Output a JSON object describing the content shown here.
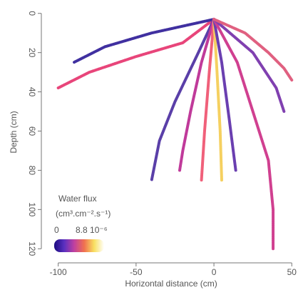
{
  "chart_data": {
    "type": "line",
    "xlabel": "Horizontal distance (cm)",
    "ylabel": "Depth (cm)",
    "xlim": [
      -109,
      54
    ],
    "ylim": [
      -5,
      125
    ],
    "y_reversed": true,
    "xticks": [
      -100,
      -50,
      0,
      50
    ],
    "yticks": [
      0,
      20,
      40,
      60,
      80,
      100,
      120
    ],
    "legend_title": "Water flux",
    "legend_units": "(cm³.cm⁻².s⁻¹)",
    "colorbar_min_label": "0",
    "colorbar_max_label": "8.8 10⁻⁶",
    "colorbar_colors": [
      "#1a0a80",
      "#5a30c0",
      "#c040a0",
      "#f07050",
      "#f8e060",
      "#ffffff"
    ],
    "roots": [
      {
        "color": "#e8457a",
        "x": [
          0,
          -20,
          -50,
          -80,
          -100
        ],
        "y": [
          3,
          15,
          22,
          30,
          38
        ]
      },
      {
        "color": "#4030a0",
        "x": [
          0,
          -40,
          -70,
          -90
        ],
        "y": [
          3,
          10,
          17,
          25
        ]
      },
      {
        "color": "#5a3fa8",
        "x": [
          0,
          -10,
          -25,
          -35,
          -40
        ],
        "y": [
          3,
          20,
          45,
          65,
          85
        ]
      },
      {
        "color": "#c03a9a",
        "x": [
          0,
          -8,
          -15,
          -20,
          -22
        ],
        "y": [
          3,
          25,
          50,
          70,
          80
        ]
      },
      {
        "color": "#f0607a",
        "x": [
          0,
          -3,
          -6,
          -8
        ],
        "y": [
          3,
          30,
          60,
          85
        ]
      },
      {
        "color": "#f5d060",
        "x": [
          0,
          2,
          4,
          5
        ],
        "y": [
          3,
          30,
          60,
          85
        ]
      },
      {
        "color": "#6a3fb0",
        "x": [
          0,
          5,
          10,
          14
        ],
        "y": [
          3,
          25,
          55,
          80
        ]
      },
      {
        "color": "#d04090",
        "x": [
          0,
          15,
          25,
          35,
          38,
          38
        ],
        "y": [
          3,
          25,
          50,
          75,
          100,
          120
        ]
      },
      {
        "color": "#8040b0",
        "x": [
          0,
          25,
          40,
          45
        ],
        "y": [
          3,
          20,
          38,
          50
        ]
      },
      {
        "color": "#e06080",
        "x": [
          0,
          20,
          35,
          45,
          50
        ],
        "y": [
          3,
          10,
          20,
          28,
          34
        ]
      }
    ]
  }
}
